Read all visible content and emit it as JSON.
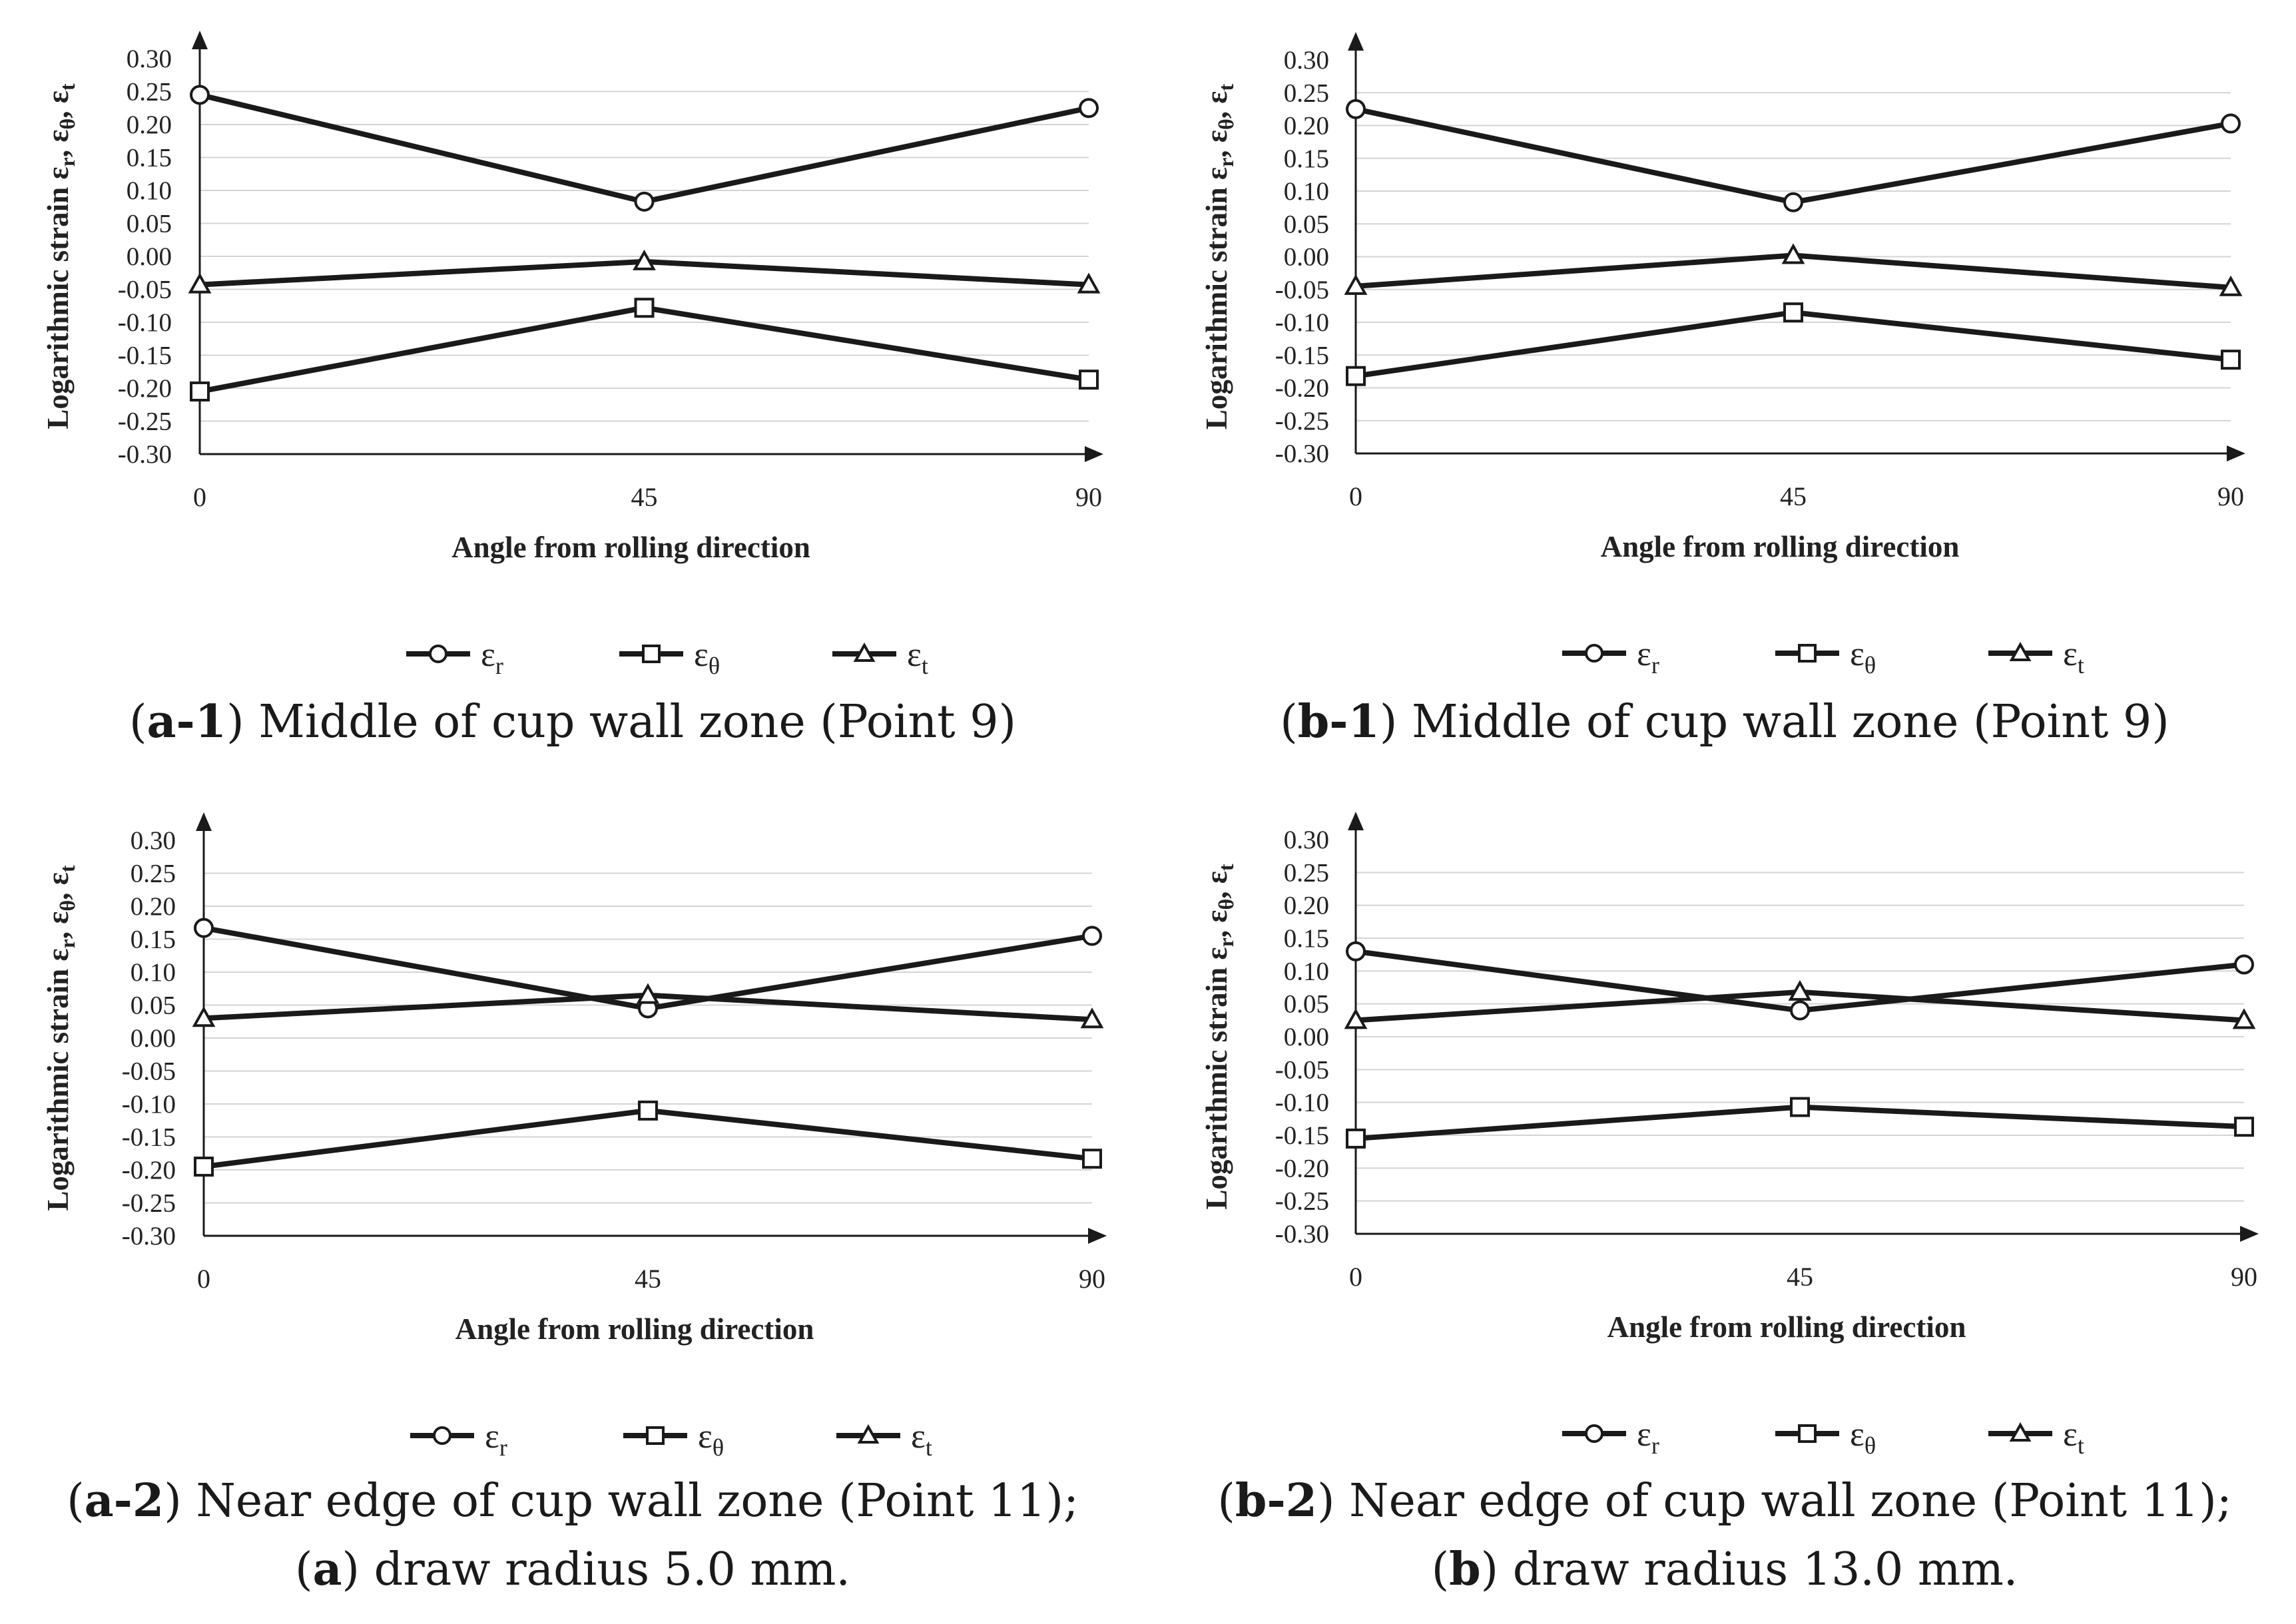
{
  "chart_data": [
    {
      "id": "a1",
      "type": "line",
      "caption": {
        "id": "a-1",
        "text": " Middle of cup wall zone (Point 9)"
      },
      "xlabel": "Angle from rolling direction",
      "ylabel": "Logarithmic strain ε",
      "ylabel_subs": [
        "r",
        "θ",
        "t"
      ],
      "categories": [
        "0",
        "45",
        "90"
      ],
      "ylim": [
        -0.3,
        0.3
      ],
      "yticks": [
        "0.30",
        "0.25",
        "0.20",
        "0.15",
        "0.10",
        "0.05",
        "0.00",
        "-0.05",
        "-0.10",
        "-0.15",
        "-0.20",
        "-0.25",
        "-0.30"
      ],
      "grid": true,
      "legend": "bottom",
      "series": [
        {
          "name": "ε",
          "sub": "r",
          "marker": "circle",
          "values": [
            0.245,
            0.083,
            0.225
          ]
        },
        {
          "name": "ε",
          "sub": "θ",
          "marker": "square",
          "values": [
            -0.205,
            -0.078,
            -0.187
          ]
        },
        {
          "name": "ε",
          "sub": "t",
          "marker": "triangle",
          "values": [
            -0.043,
            -0.008,
            -0.043
          ]
        }
      ]
    },
    {
      "id": "b1",
      "type": "line",
      "caption": {
        "id": "b-1",
        "text": " Middle of cup wall zone (Point 9)"
      },
      "xlabel": "Angle from rolling direction",
      "ylabel": "Logarithmic strain ε",
      "ylabel_subs": [
        "r",
        "θ",
        "t"
      ],
      "categories": [
        "0",
        "45",
        "90"
      ],
      "ylim": [
        -0.3,
        0.3
      ],
      "yticks": [
        "0.30",
        "0.25",
        "0.20",
        "0.15",
        "0.10",
        "0.05",
        "0.00",
        "-0.05",
        "-0.10",
        "-0.15",
        "-0.20",
        "-0.25",
        "-0.30"
      ],
      "grid": true,
      "legend": "bottom",
      "series": [
        {
          "name": "ε",
          "sub": "r",
          "marker": "circle",
          "values": [
            0.225,
            0.083,
            0.203
          ]
        },
        {
          "name": "ε",
          "sub": "θ",
          "marker": "square",
          "values": [
            -0.182,
            -0.085,
            -0.157
          ]
        },
        {
          "name": "ε",
          "sub": "t",
          "marker": "triangle",
          "values": [
            -0.045,
            0.002,
            -0.047
          ]
        }
      ]
    },
    {
      "id": "a2",
      "type": "line",
      "caption": {
        "id": "a-2",
        "text": " Near edge of cup wall zone (Point 11);"
      },
      "caption_line2": {
        "id": "a",
        "text": " draw radius 5.0 mm."
      },
      "xlabel": "Angle from rolling direction",
      "ylabel": "Logarithmic strain ε",
      "ylabel_subs": [
        "r",
        "θ",
        "t"
      ],
      "categories": [
        "0",
        "45",
        "90"
      ],
      "ylim": [
        -0.3,
        0.3
      ],
      "yticks": [
        "0.30",
        "0.25",
        "0.20",
        "0.15",
        "0.10",
        "0.05",
        "0.00",
        "-0.05",
        "-0.10",
        "-0.15",
        "-0.20",
        "-0.25",
        "-0.30"
      ],
      "grid": true,
      "legend": "bottom",
      "series": [
        {
          "name": "ε",
          "sub": "r",
          "marker": "circle",
          "values": [
            0.167,
            0.045,
            0.155
          ]
        },
        {
          "name": "ε",
          "sub": "θ",
          "marker": "square",
          "values": [
            -0.195,
            -0.11,
            -0.183
          ]
        },
        {
          "name": "ε",
          "sub": "t",
          "marker": "triangle",
          "values": [
            0.03,
            0.065,
            0.028
          ]
        }
      ]
    },
    {
      "id": "b2",
      "type": "line",
      "caption": {
        "id": "b-2",
        "text": " Near edge of cup wall zone (Point 11);"
      },
      "caption_line2": {
        "id": "b",
        "text": " draw radius 13.0 mm."
      },
      "xlabel": "Angle from rolling direction",
      "ylabel": "Logarithmic strain ε",
      "ylabel_subs": [
        "r",
        "θ",
        "t"
      ],
      "categories": [
        "0",
        "45",
        "90"
      ],
      "ylim": [
        -0.3,
        0.3
      ],
      "yticks": [
        "0.30",
        "0.25",
        "0.20",
        "0.15",
        "0.10",
        "0.05",
        "0.00",
        "-0.05",
        "-0.10",
        "-0.15",
        "-0.20",
        "-0.25",
        "-0.30"
      ],
      "grid": true,
      "legend": "bottom",
      "series": [
        {
          "name": "ε",
          "sub": "r",
          "marker": "circle",
          "values": [
            0.13,
            0.04,
            0.11
          ]
        },
        {
          "name": "ε",
          "sub": "θ",
          "marker": "square",
          "values": [
            -0.155,
            -0.107,
            -0.137
          ]
        },
        {
          "name": "ε",
          "sub": "t",
          "marker": "triangle",
          "values": [
            0.025,
            0.068,
            0.025
          ]
        }
      ]
    }
  ]
}
